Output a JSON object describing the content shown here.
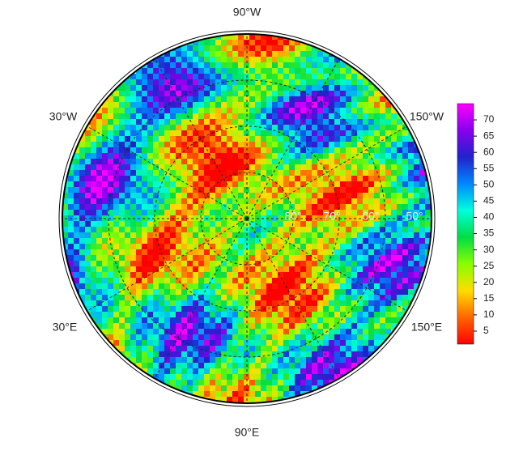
{
  "map": {
    "longitude_labels": [
      "90°W",
      "30°W",
      "150°W",
      "30°E",
      "150°E",
      "90°E"
    ],
    "latitude_labels": [
      "80°",
      "70°",
      "60°",
      "50°"
    ],
    "colorbar": {
      "lim": [
        1,
        75
      ],
      "ticks": [
        5,
        10,
        15,
        20,
        25,
        30,
        35,
        40,
        45,
        50,
        55,
        60,
        65,
        70
      ],
      "colors": [
        "#ff0000",
        "#ff6600",
        "#ffdd00",
        "#88ff00",
        "#00dd44",
        "#00ffdd",
        "#0088ff",
        "#2222cc",
        "#8800ee",
        "#ff00ff"
      ]
    }
  }
}
